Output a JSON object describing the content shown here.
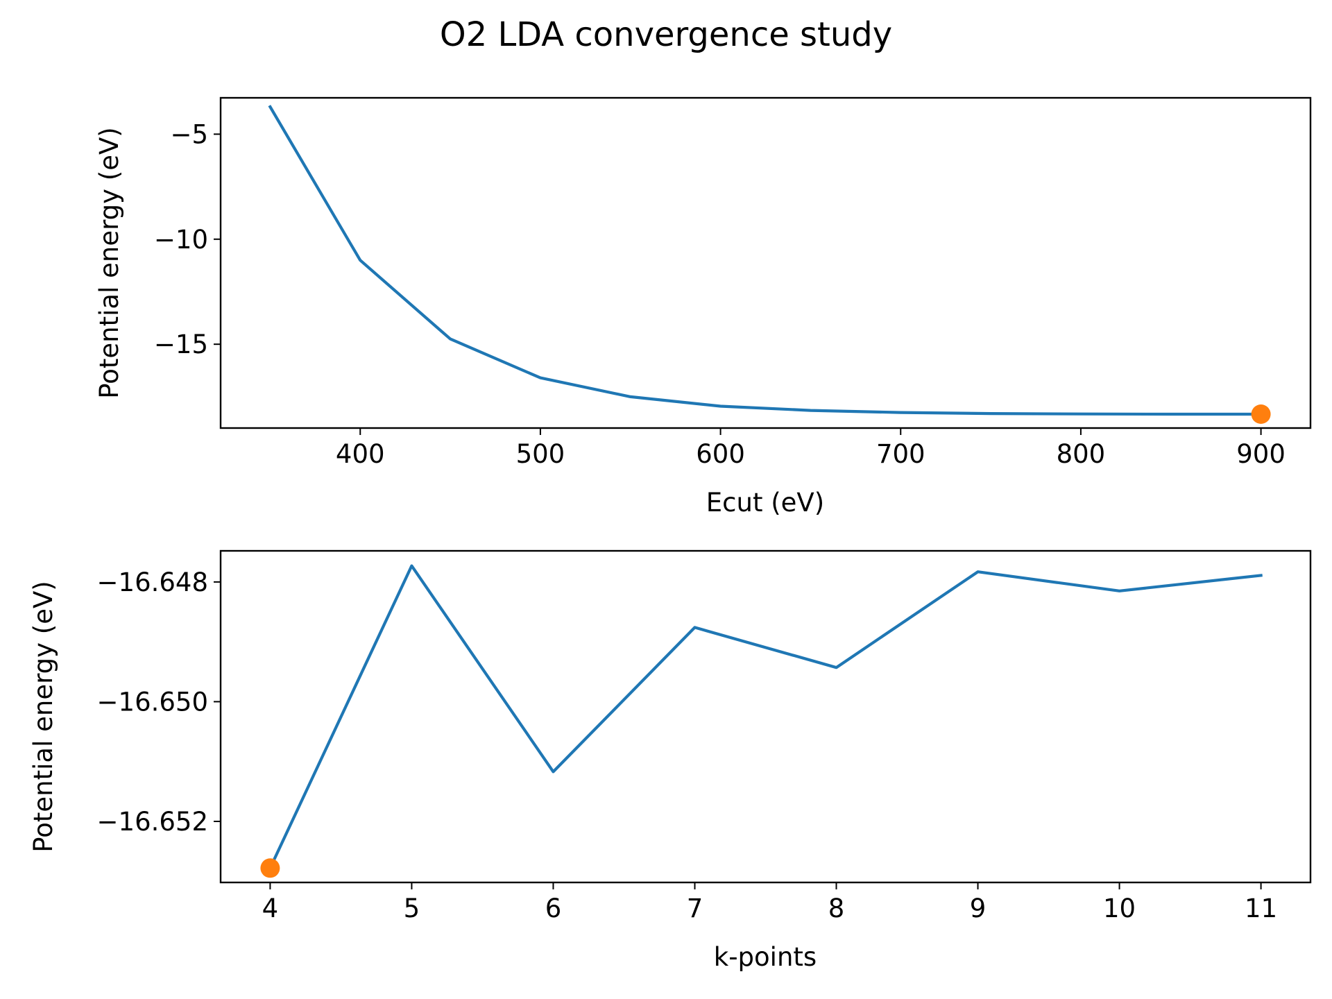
{
  "figure": {
    "title": "O2 LDA convergence study"
  },
  "colors": {
    "line": "#1f77b4",
    "marker": "#ff7f0e",
    "axes": "#000000",
    "background": "#ffffff"
  },
  "chart_data": [
    {
      "type": "line",
      "title": "",
      "xlabel": "Ecut (eV)",
      "ylabel": "Potential energy (eV)",
      "xlim": [
        322.5,
        927.5
      ],
      "ylim": [
        -18.99,
        -3.27
      ],
      "xticks": [
        400,
        500,
        600,
        700,
        800,
        900
      ],
      "xtick_labels": [
        "400",
        "500",
        "600",
        "700",
        "800",
        "900"
      ],
      "yticks": [
        -5,
        -10,
        -15
      ],
      "ytick_labels": [
        "−5",
        "−10",
        "−15"
      ],
      "grid": false,
      "series": [
        {
          "style": "line",
          "color": "#1f77b4",
          "x": [
            350,
            400,
            450,
            500,
            550,
            600,
            650,
            700,
            750,
            800,
            850,
            900
          ],
          "y": [
            -3.7,
            -11.0,
            -14.75,
            -16.6,
            -17.5,
            -17.95,
            -18.15,
            -18.25,
            -18.3,
            -18.32,
            -18.33,
            -18.33
          ]
        },
        {
          "style": "marker",
          "color": "#ff7f0e",
          "x": [
            900
          ],
          "y": [
            -18.33
          ]
        }
      ]
    },
    {
      "type": "line",
      "title": "",
      "xlabel": "k-points",
      "ylabel": "Potential energy (eV)",
      "xlim": [
        3.65,
        11.35
      ],
      "ylim": [
        -16.65302,
        -16.64748
      ],
      "xticks": [
        4,
        5,
        6,
        7,
        8,
        9,
        10,
        11
      ],
      "xtick_labels": [
        "4",
        "5",
        "6",
        "7",
        "8",
        "9",
        "10",
        "11"
      ],
      "yticks": [
        -16.648,
        -16.65,
        -16.652
      ],
      "ytick_labels": [
        "−16.648",
        "−16.650",
        "−16.652"
      ],
      "grid": false,
      "series": [
        {
          "style": "line",
          "color": "#1f77b4",
          "x": [
            4,
            5,
            6,
            7,
            8,
            9,
            10,
            11
          ],
          "y": [
            -16.65278,
            -16.64773,
            -16.65117,
            -16.64876,
            -16.64943,
            -16.64783,
            -16.64815,
            -16.64789
          ]
        },
        {
          "style": "marker",
          "color": "#ff7f0e",
          "x": [
            4
          ],
          "y": [
            -16.65278
          ]
        }
      ]
    }
  ]
}
